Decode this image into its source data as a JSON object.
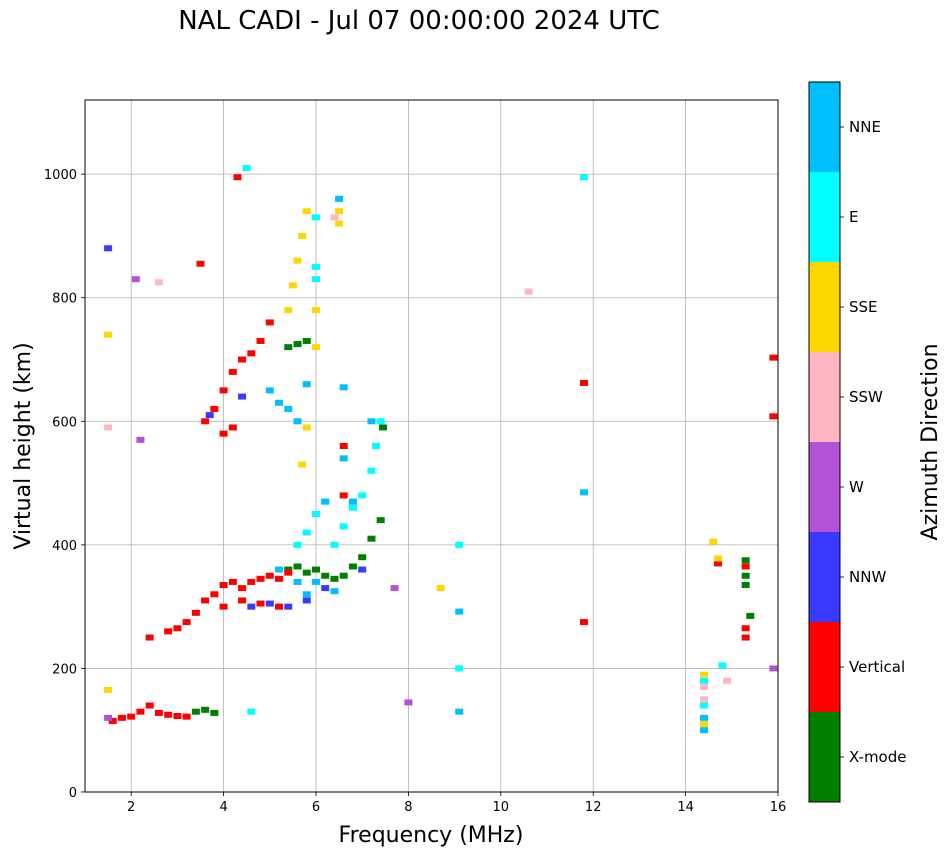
{
  "chart_data": {
    "type": "scatter",
    "title": "NAL CADI - Jul 07 00:00:00 2024 UTC",
    "xlabel": "Frequency (MHz)",
    "ylabel": "Virtual height (km)",
    "xlim": [
      1,
      16
    ],
    "ylim": [
      0,
      1120
    ],
    "xticks": [
      2,
      4,
      6,
      8,
      10,
      12,
      14,
      16
    ],
    "yticks": [
      0,
      200,
      400,
      600,
      800,
      1000
    ],
    "grid": true,
    "colorbar": {
      "label": "Azimuth Direction",
      "categories": [
        {
          "name": "X-mode",
          "color": "#008000"
        },
        {
          "name": "Vertical",
          "color": "#ff0000"
        },
        {
          "name": "NNW",
          "color": "#3a3aff"
        },
        {
          "name": "W",
          "color": "#b452d6"
        },
        {
          "name": "SSW",
          "color": "#ffb6c1"
        },
        {
          "name": "SSE",
          "color": "#ffd700"
        },
        {
          "name": "E",
          "color": "#00ffff"
        },
        {
          "name": "NNE",
          "color": "#00bfff"
        }
      ]
    },
    "series": [
      {
        "name": "X-mode",
        "points": [
          [
            3.4,
            130
          ],
          [
            3.6,
            133
          ],
          [
            3.8,
            128
          ],
          [
            5.4,
            360
          ],
          [
            5.6,
            365
          ],
          [
            5.8,
            355
          ],
          [
            6.0,
            360
          ],
          [
            6.2,
            350
          ],
          [
            6.4,
            345
          ],
          [
            6.6,
            350
          ],
          [
            6.8,
            365
          ],
          [
            7.0,
            380
          ],
          [
            7.2,
            410
          ],
          [
            7.4,
            440
          ],
          [
            7.45,
            590
          ],
          [
            5.4,
            720
          ],
          [
            5.6,
            725
          ],
          [
            5.8,
            730
          ],
          [
            15.3,
            350
          ],
          [
            15.3,
            375
          ],
          [
            15.3,
            335
          ],
          [
            15.4,
            285
          ]
        ]
      },
      {
        "name": "Vertical",
        "points": [
          [
            1.6,
            115
          ],
          [
            1.8,
            120
          ],
          [
            2.0,
            122
          ],
          [
            2.2,
            130
          ],
          [
            2.4,
            140
          ],
          [
            2.6,
            128
          ],
          [
            2.8,
            125
          ],
          [
            3.0,
            123
          ],
          [
            3.2,
            122
          ],
          [
            2.4,
            250
          ],
          [
            2.8,
            260
          ],
          [
            3.0,
            265
          ],
          [
            3.2,
            275
          ],
          [
            3.4,
            290
          ],
          [
            3.6,
            310
          ],
          [
            3.8,
            320
          ],
          [
            4.0,
            335
          ],
          [
            4.2,
            340
          ],
          [
            4.4,
            330
          ],
          [
            4.6,
            340
          ],
          [
            4.8,
            345
          ],
          [
            5.0,
            350
          ],
          [
            5.2,
            345
          ],
          [
            5.4,
            355
          ],
          [
            4.0,
            300
          ],
          [
            4.4,
            310
          ],
          [
            4.8,
            305
          ],
          [
            5.2,
            300
          ],
          [
            3.6,
            600
          ],
          [
            3.8,
            620
          ],
          [
            4.0,
            650
          ],
          [
            4.2,
            680
          ],
          [
            4.4,
            700
          ],
          [
            4.6,
            710
          ],
          [
            4.8,
            730
          ],
          [
            5.0,
            760
          ],
          [
            4.0,
            580
          ],
          [
            4.2,
            590
          ],
          [
            3.5,
            855
          ],
          [
            4.3,
            995
          ],
          [
            6.6,
            480
          ],
          [
            6.6,
            560
          ],
          [
            11.8,
            275
          ],
          [
            11.8,
            662
          ],
          [
            15.3,
            265
          ],
          [
            15.3,
            250
          ],
          [
            15.3,
            365
          ],
          [
            15.9,
            608
          ],
          [
            15.9,
            703
          ],
          [
            14.7,
            370
          ]
        ]
      },
      {
        "name": "NNW",
        "points": [
          [
            4.6,
            300
          ],
          [
            5.0,
            305
          ],
          [
            5.4,
            300
          ],
          [
            5.8,
            310
          ],
          [
            6.2,
            330
          ],
          [
            7.0,
            360
          ],
          [
            3.7,
            610
          ],
          [
            4.4,
            640
          ],
          [
            1.5,
            880
          ]
        ]
      },
      {
        "name": "W",
        "points": [
          [
            2.1,
            830
          ],
          [
            2.2,
            570
          ],
          [
            1.5,
            120
          ],
          [
            7.7,
            330
          ],
          [
            8.0,
            145
          ],
          [
            15.9,
            200
          ]
        ]
      },
      {
        "name": "SSW",
        "points": [
          [
            14.4,
            170
          ],
          [
            14.4,
            150
          ],
          [
            14.9,
            180
          ],
          [
            6.4,
            930
          ],
          [
            1.5,
            590
          ],
          [
            10.6,
            810
          ],
          [
            2.6,
            825
          ]
        ]
      },
      {
        "name": "SSE",
        "points": [
          [
            5.4,
            780
          ],
          [
            5.5,
            820
          ],
          [
            5.6,
            860
          ],
          [
            5.7,
            900
          ],
          [
            5.8,
            940
          ],
          [
            6.0,
            780
          ],
          [
            6.0,
            720
          ],
          [
            5.7,
            530
          ],
          [
            5.8,
            590
          ],
          [
            6.5,
            940
          ],
          [
            6.5,
            920
          ],
          [
            14.4,
            110
          ],
          [
            14.4,
            190
          ],
          [
            14.6,
            405
          ],
          [
            14.7,
            378
          ],
          [
            8.7,
            330
          ],
          [
            1.5,
            740
          ],
          [
            1.5,
            165
          ]
        ]
      },
      {
        "name": "E",
        "points": [
          [
            5.6,
            400
          ],
          [
            5.8,
            420
          ],
          [
            6.0,
            450
          ],
          [
            6.2,
            470
          ],
          [
            6.4,
            400
          ],
          [
            6.6,
            430
          ],
          [
            6.8,
            460
          ],
          [
            7.0,
            480
          ],
          [
            7.2,
            520
          ],
          [
            7.3,
            560
          ],
          [
            7.4,
            600
          ],
          [
            6.0,
            830
          ],
          [
            6.0,
            850
          ],
          [
            6.0,
            930
          ],
          [
            4.6,
            130
          ],
          [
            9.1,
            200
          ],
          [
            9.1,
            400
          ],
          [
            14.4,
            180
          ],
          [
            14.4,
            140
          ],
          [
            14.8,
            205
          ],
          [
            11.8,
            995
          ],
          [
            4.5,
            1010
          ]
        ]
      },
      {
        "name": "NNE",
        "points": [
          [
            5.0,
            650
          ],
          [
            5.2,
            630
          ],
          [
            5.4,
            620
          ],
          [
            5.6,
            600
          ],
          [
            5.8,
            660
          ],
          [
            6.2,
            470
          ],
          [
            6.6,
            540
          ],
          [
            6.8,
            470
          ],
          [
            7.2,
            600
          ],
          [
            5.2,
            360
          ],
          [
            5.6,
            340
          ],
          [
            5.8,
            320
          ],
          [
            6.0,
            340
          ],
          [
            6.4,
            325
          ],
          [
            11.8,
            485
          ],
          [
            9.1,
            130
          ],
          [
            9.1,
            292
          ],
          [
            14.4,
            120
          ],
          [
            14.4,
            100
          ],
          [
            6.6,
            655
          ],
          [
            6.5,
            960
          ]
        ]
      }
    ]
  }
}
